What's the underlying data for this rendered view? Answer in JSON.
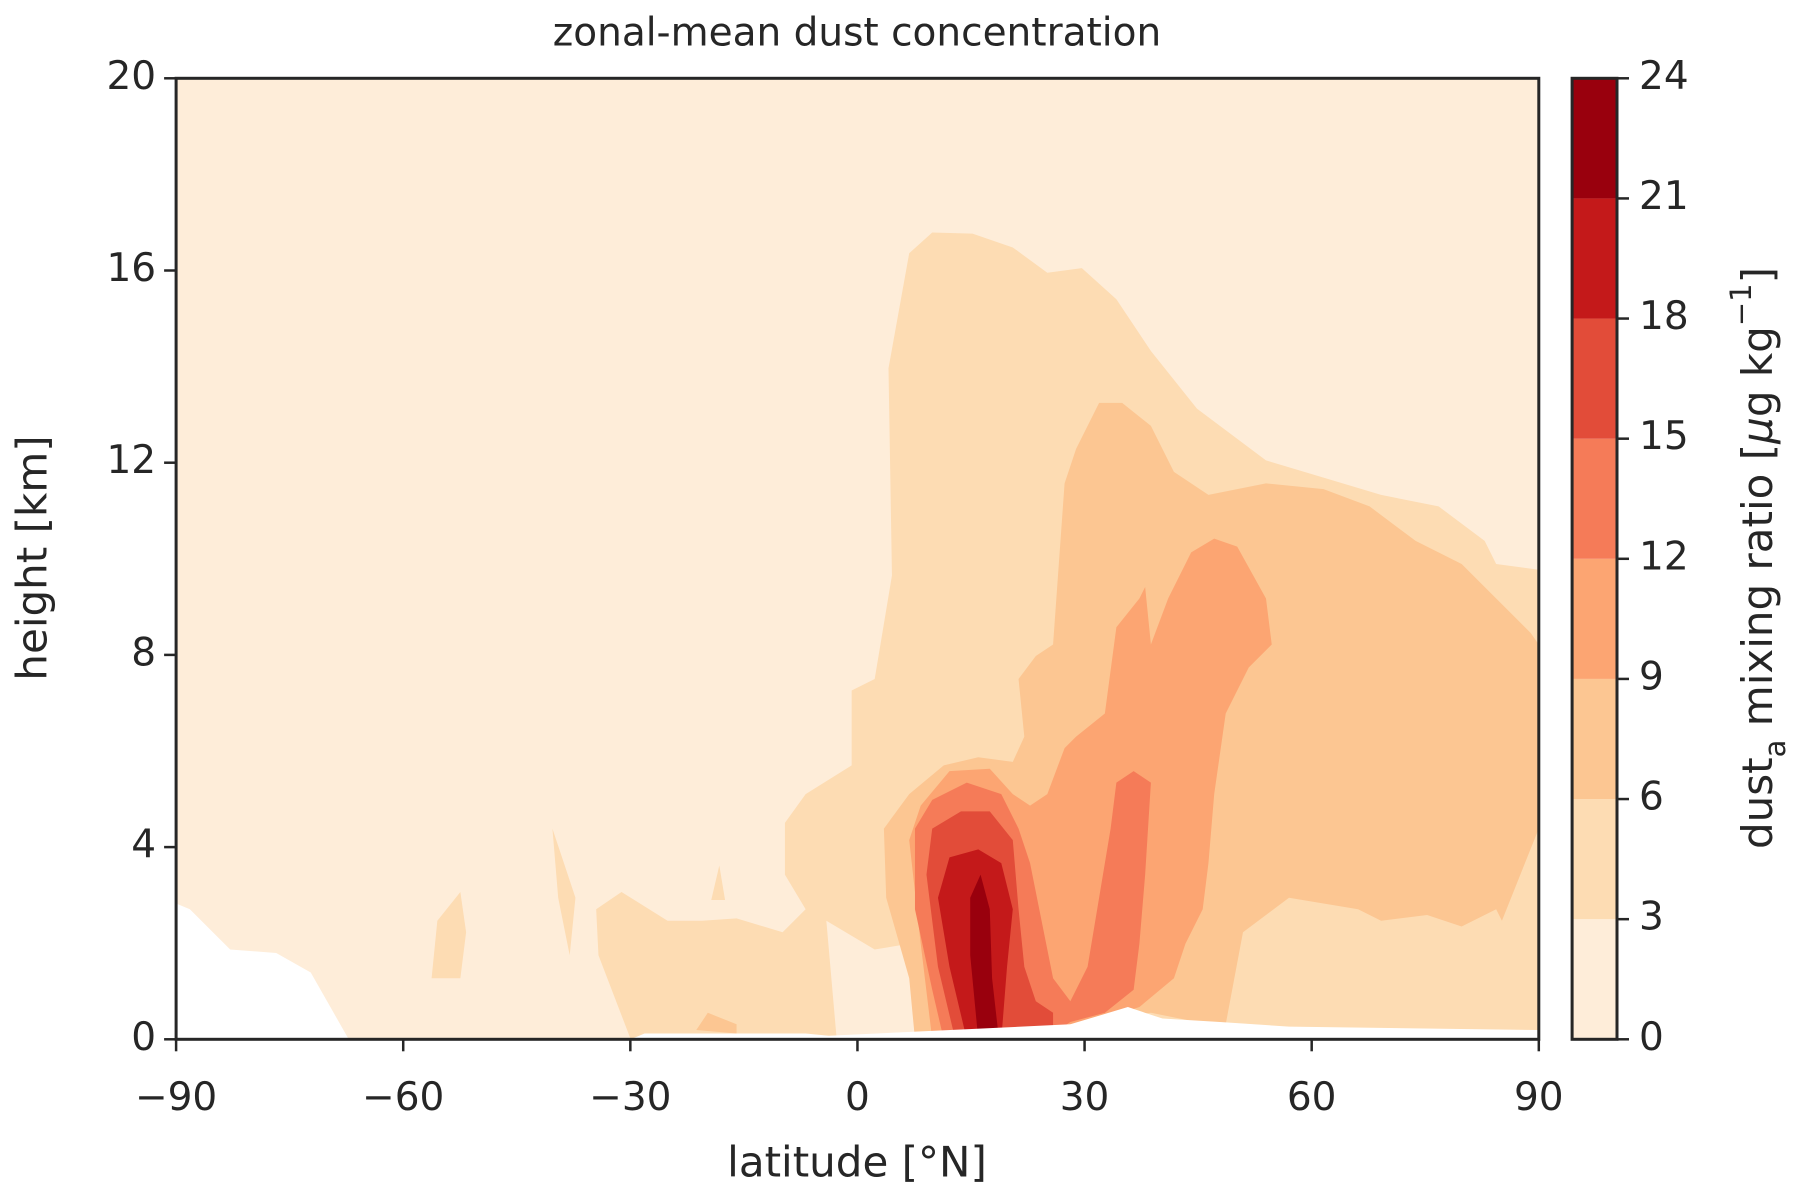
{
  "chart_data": {
    "type": "contourf",
    "title": "zonal-mean dust concentration",
    "x_label": "latitude [°N]",
    "y_label": "height [km]",
    "xlim": [
      -90,
      90
    ],
    "xticks": [
      {
        "value": -90,
        "label": "−90"
      },
      {
        "value": -60,
        "label": "−60"
      },
      {
        "value": -30,
        "label": "−30"
      },
      0,
      30,
      60,
      90
    ],
    "ylim": [
      0,
      20
    ],
    "yticks": [
      0,
      4,
      8,
      12,
      16,
      20
    ],
    "colorbar": {
      "label": {
        "base": "dust",
        "subscript": "a",
        "middle": " mixing ratio [",
        "italic": "μ",
        "unit": "g kg",
        "superscript": "−1",
        "end": "]"
      },
      "levels": [
        0,
        3,
        6,
        9,
        12,
        15,
        18,
        21,
        24
      ],
      "colors": [
        "#feedd9",
        "#fddcb3",
        "#fcc692",
        "#fca572",
        "#f57b58",
        "#e24c39",
        "#c4191a",
        "#99000d"
      ]
    }
  }
}
